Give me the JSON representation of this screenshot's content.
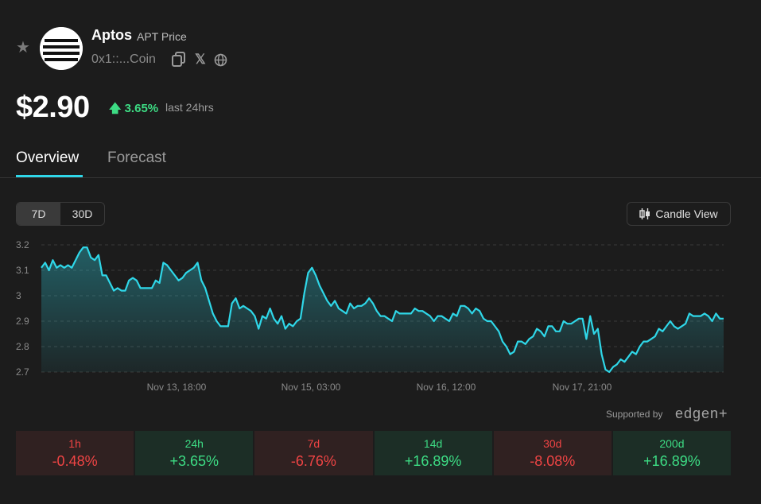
{
  "asset": {
    "name": "Aptos",
    "ticker_label": "APT Price",
    "address": "0x1::...Coin",
    "price": "$2.90",
    "change_24h": "3.65%",
    "change_period": "last 24hrs"
  },
  "tabs": [
    {
      "label": "Overview",
      "active": true
    },
    {
      "label": "Forecast",
      "active": false
    }
  ],
  "range_buttons": [
    {
      "label": "7D",
      "active": true
    },
    {
      "label": "30D",
      "active": false
    }
  ],
  "candle_view_label": "Candle View",
  "supported_by": "Supported by",
  "partner": "edgen+",
  "colors": {
    "line": "#2fd7e8",
    "positive": "#3ddc84",
    "negative": "#ef4444"
  },
  "chart_data": {
    "type": "area",
    "title": "",
    "xlabel": "",
    "ylabel": "",
    "ylim": [
      2.7,
      3.2
    ],
    "y_ticks": [
      "3.2",
      "3.1",
      "3",
      "2.9",
      "2.8",
      "2.7"
    ],
    "x_ticks": [
      "Nov 13, 18:00",
      "Nov 15, 03:00",
      "Nov 16, 12:00",
      "Nov 17, 21:00"
    ],
    "grid": true,
    "series": [
      {
        "values": [
          3.11,
          3.13,
          3.1,
          3.14,
          3.11,
          3.12,
          3.11,
          3.12,
          3.11,
          3.14,
          3.17,
          3.19,
          3.19,
          3.15,
          3.14,
          3.16,
          3.08,
          3.08,
          3.05,
          3.02,
          3.03,
          3.02,
          3.02,
          3.06,
          3.07,
          3.06,
          3.03,
          3.03,
          3.03,
          3.03,
          3.06,
          3.05,
          3.13,
          3.12,
          3.1,
          3.08,
          3.06,
          3.07,
          3.09,
          3.1,
          3.11,
          3.13,
          3.06,
          3.03,
          2.98,
          2.93,
          2.9,
          2.88,
          2.88,
          2.88,
          2.97,
          2.99,
          2.95,
          2.96,
          2.95,
          2.94,
          2.92,
          2.87,
          2.92,
          2.91,
          2.95,
          2.91,
          2.89,
          2.92,
          2.87,
          2.89,
          2.88,
          2.9,
          2.91,
          3.01,
          3.09,
          3.11,
          3.08,
          3.04,
          3.01,
          2.98,
          2.96,
          2.98,
          2.95,
          2.94,
          2.93,
          2.97,
          2.95,
          2.96,
          2.96,
          2.97,
          2.99,
          2.97,
          2.94,
          2.92,
          2.92,
          2.91,
          2.9,
          2.94,
          2.93,
          2.93,
          2.93,
          2.93,
          2.95,
          2.94,
          2.94,
          2.93,
          2.92,
          2.9,
          2.92,
          2.92,
          2.91,
          2.9,
          2.93,
          2.92,
          2.96,
          2.96,
          2.95,
          2.93,
          2.95,
          2.94,
          2.91,
          2.9,
          2.9,
          2.88,
          2.86,
          2.82,
          2.8,
          2.77,
          2.78,
          2.82,
          2.82,
          2.81,
          2.83,
          2.84,
          2.87,
          2.86,
          2.84,
          2.88,
          2.88,
          2.86,
          2.86,
          2.9,
          2.89,
          2.89,
          2.9,
          2.91,
          2.91,
          2.83,
          2.92,
          2.85,
          2.87,
          2.77,
          2.71,
          2.7,
          2.72,
          2.73,
          2.75,
          2.74,
          2.76,
          2.78,
          2.77,
          2.8,
          2.82,
          2.82,
          2.83,
          2.84,
          2.87,
          2.86,
          2.88,
          2.9,
          2.88,
          2.87,
          2.88,
          2.89,
          2.93,
          2.92,
          2.92,
          2.92,
          2.93,
          2.92,
          2.9,
          2.93,
          2.91,
          2.91
        ]
      }
    ]
  },
  "performance": [
    {
      "label": "1h",
      "value": "-0.48%",
      "sign": "neg"
    },
    {
      "label": "24h",
      "value": "+3.65%",
      "sign": "pos"
    },
    {
      "label": "7d",
      "value": "-6.76%",
      "sign": "neg"
    },
    {
      "label": "14d",
      "value": "+16.89%",
      "sign": "pos"
    },
    {
      "label": "30d",
      "value": "-8.08%",
      "sign": "neg"
    },
    {
      "label": "200d",
      "value": "+16.89%",
      "sign": "pos"
    }
  ]
}
